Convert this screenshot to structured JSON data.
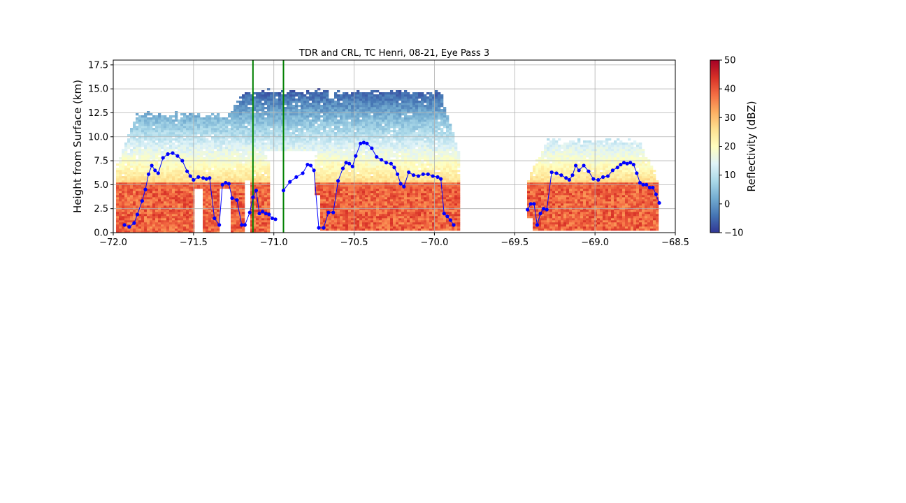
{
  "chart_data": {
    "type": "heatmap",
    "title": "TDR and CRL, TC Henri, 08-21, Eye Pass 3",
    "xlabel": "",
    "ylabel": "Height from Surface (km)",
    "xlim": [
      -72.0,
      -68.5
    ],
    "ylim": [
      0.0,
      18.0
    ],
    "x_ticks": [
      -72.0,
      -71.5,
      -71.0,
      -70.5,
      -70.0,
      -69.5,
      -69.0,
      -68.5
    ],
    "x_tick_labels": [
      "−72.0",
      "−71.5",
      "−71.0",
      "−70.5",
      "−70.0",
      "−69.5",
      "−69.0",
      "−68.5"
    ],
    "y_ticks": [
      0.0,
      2.5,
      5.0,
      7.5,
      10.0,
      12.5,
      15.0,
      17.5
    ],
    "y_tick_labels": [
      "0.0",
      "2.5",
      "5.0",
      "7.5",
      "10.0",
      "12.5",
      "15.0",
      "17.5"
    ],
    "grid": true,
    "colorbar": {
      "label": "Reflectivity (dBZ)",
      "range": [
        -10,
        50
      ],
      "ticks": [
        -10,
        0,
        10,
        20,
        30,
        40,
        50
      ],
      "tick_labels": [
        "−10",
        "0",
        "10",
        "20",
        "30",
        "40",
        "50"
      ],
      "colormap": "RdYlBu_r"
    },
    "vertical_lines": [
      {
        "x": -71.13,
        "color": "#008000"
      },
      {
        "x": -70.94,
        "color": "#008000"
      }
    ],
    "echo_top_segments": [
      {
        "x": [
          -71.93,
          -71.9,
          -71.87,
          -71.85,
          -71.82,
          -71.8,
          -71.78,
          -71.76,
          -71.74,
          -71.72,
          -71.69,
          -71.66,
          -71.63,
          -71.6,
          -71.57,
          -71.54,
          -71.52,
          -71.5,
          -71.47,
          -71.44,
          -71.42,
          -71.4,
          -71.37,
          -71.34,
          -71.32,
          -71.3,
          -71.28,
          -71.26,
          -71.23,
          -71.2,
          -71.18,
          -71.15,
          -71.13,
          -71.11,
          -71.09,
          -71.07,
          -71.05,
          -71.03,
          -71.01,
          -70.99
        ],
        "y": [
          0.8,
          0.6,
          1.0,
          1.9,
          3.3,
          4.5,
          6.1,
          7.0,
          6.5,
          6.2,
          7.8,
          8.2,
          8.3,
          8.0,
          7.5,
          6.4,
          5.9,
          5.5,
          5.8,
          5.7,
          5.6,
          5.7,
          1.5,
          0.8,
          5.0,
          5.2,
          5.1,
          3.6,
          3.4,
          0.8,
          0.8,
          2.1,
          3.7,
          4.4,
          2.0,
          2.2,
          2.0,
          1.9,
          1.5,
          1.4
        ]
      },
      {
        "x": [
          -70.94,
          -70.9,
          -70.86,
          -70.82,
          -70.79,
          -70.77,
          -70.75,
          -70.72,
          -70.69,
          -70.66,
          -70.63,
          -70.6,
          -70.57,
          -70.55,
          -70.53,
          -70.51,
          -70.49,
          -70.46,
          -70.44,
          -70.42,
          -70.39,
          -70.36,
          -70.33,
          -70.3,
          -70.27,
          -70.25,
          -70.23,
          -70.21,
          -70.19,
          -70.16,
          -70.13,
          -70.1,
          -70.07,
          -70.04,
          -70.01,
          -69.98,
          -69.96,
          -69.94,
          -69.92,
          -69.9,
          -69.88
        ],
        "y": [
          4.4,
          5.3,
          5.8,
          6.2,
          7.1,
          7.0,
          6.5,
          0.5,
          0.5,
          2.1,
          2.1,
          5.4,
          6.7,
          7.3,
          7.2,
          6.9,
          8.0,
          9.3,
          9.4,
          9.3,
          8.8,
          7.9,
          7.6,
          7.3,
          7.2,
          6.8,
          6.1,
          5.1,
          4.8,
          6.3,
          6.0,
          5.9,
          6.1,
          6.1,
          5.9,
          5.8,
          5.6,
          2.0,
          1.7,
          1.3,
          0.8
        ]
      },
      {
        "x": [
          -69.42,
          -69.4,
          -69.38,
          -69.36,
          -69.34,
          -69.32,
          -69.3,
          -69.27,
          -69.24,
          -69.21,
          -69.18,
          -69.16,
          -69.14,
          -69.12,
          -69.1,
          -69.07,
          -69.04,
          -69.01,
          -68.98,
          -68.95,
          -68.92,
          -68.89,
          -68.86,
          -68.84,
          -68.82,
          -68.8,
          -68.78,
          -68.76,
          -68.74,
          -68.72,
          -68.7,
          -68.68,
          -68.66,
          -68.64,
          -68.62,
          -68.6
        ],
        "y": [
          2.4,
          3.0,
          3.0,
          0.8,
          2.0,
          2.5,
          2.4,
          6.3,
          6.2,
          6.0,
          5.7,
          5.5,
          6.0,
          7.0,
          6.5,
          7.0,
          6.4,
          5.6,
          5.5,
          5.8,
          5.9,
          6.5,
          6.8,
          7.1,
          7.3,
          7.2,
          7.3,
          7.1,
          6.2,
          5.2,
          5.0,
          5.0,
          4.7,
          4.7,
          4.0,
          3.1
        ]
      }
    ],
    "echo_top_color": "#0000ff"
  }
}
